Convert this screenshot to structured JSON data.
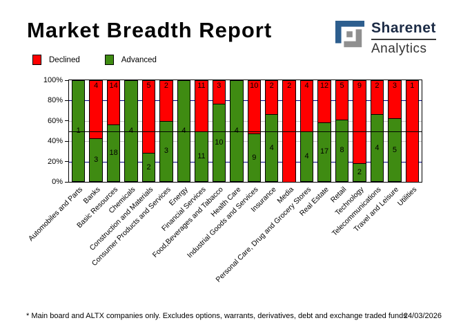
{
  "title": "Market Breadth Report",
  "logo": {
    "brand": "Sharenet",
    "sub": "Analytics",
    "blue": "#2d5e8e",
    "gray": "#8f8f8f"
  },
  "legend": [
    {
      "label": "Declined",
      "color": "#ff0000"
    },
    {
      "label": "Advanced",
      "color": "#3f8b12"
    }
  ],
  "footer": {
    "note": "* Main board and ALTX companies only. Excludes options, warrants, derivatives, debt and exchange traded funds",
    "date": "24/03/2026"
  },
  "chart_data": {
    "type": "bar",
    "stacked": "percent",
    "title": "Market Breadth Report",
    "categories": [
      "Automobiles and Parts",
      "Banks",
      "Basic Resources",
      "Chemicals",
      "Construction and Materials",
      "Consumer Products and Services",
      "Energy",
      "Financial Services",
      "Food,Beverages and Tabacco",
      "Health Care",
      "Industrial Goods and Services",
      "Insurance",
      "Media",
      "Personal Care, Drug and Grocery Stores",
      "Real Estate",
      "Retail",
      "Technology",
      "Telecommunications",
      "Travel and Leisure",
      "Utilities"
    ],
    "series": [
      {
        "name": "Advanced",
        "color": "#3f8b12",
        "values": [
          1,
          3,
          18,
          4,
          2,
          3,
          4,
          11,
          10,
          4,
          9,
          4,
          0,
          4,
          17,
          8,
          2,
          4,
          5,
          0
        ]
      },
      {
        "name": "Declined",
        "color": "#ff0000",
        "values": [
          0,
          4,
          14,
          0,
          5,
          2,
          0,
          11,
          3,
          0,
          10,
          2,
          2,
          4,
          12,
          5,
          9,
          2,
          3,
          1
        ]
      }
    ],
    "yticks": [
      "0%",
      "20%",
      "40%",
      "60%",
      "80%",
      "100%"
    ],
    "ylim": [
      0,
      100
    ],
    "fifty_percent_line": true,
    "gridlines": {
      "navy_pct": [
        20,
        80
      ],
      "navy_color": "#000080",
      "silver_pct": [
        40,
        60
      ],
      "silver_color": "#c0c0c0"
    },
    "legend_position": "top-left"
  }
}
